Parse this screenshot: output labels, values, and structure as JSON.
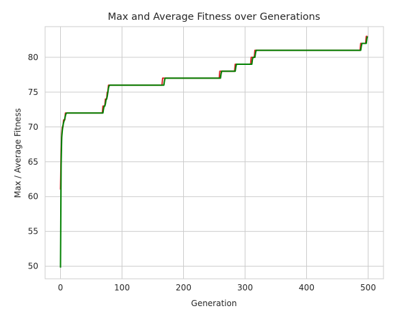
{
  "chart_data": {
    "type": "line",
    "title": "Max and Average Fitness over Generations",
    "xlabel": "Generation",
    "ylabel": "Max / Average Fitness",
    "xlim": [
      -25,
      525
    ],
    "ylim": [
      48.2,
      84.4
    ],
    "xticks": [
      0,
      100,
      200,
      300,
      400,
      500
    ],
    "yticks": [
      50,
      55,
      60,
      65,
      70,
      75,
      80
    ],
    "grid": true,
    "legend": "none",
    "series": [
      {
        "color": "#d62728",
        "x": [
          0,
          1,
          2,
          3,
          4,
          5,
          6,
          7,
          8,
          9,
          10,
          68,
          69,
          70,
          71,
          72,
          73,
          74,
          75,
          76,
          77,
          78,
          79,
          80,
          165,
          166,
          167,
          168,
          169,
          170,
          258,
          259,
          260,
          261,
          283,
          284,
          285,
          286,
          309,
          310,
          311,
          312,
          315,
          316,
          317,
          318,
          487,
          488,
          489,
          490,
          496,
          497,
          498,
          499
        ],
        "y": [
          61,
          66,
          69,
          70,
          70,
          71,
          71,
          71,
          72,
          72,
          72,
          72,
          73,
          73,
          73,
          73,
          74,
          74,
          74,
          75,
          75,
          76,
          76,
          76,
          76,
          77,
          77,
          77,
          77,
          77,
          77,
          78,
          78,
          78,
          78,
          79,
          79,
          79,
          79,
          80,
          80,
          80,
          80,
          81,
          81,
          81,
          81,
          82,
          82,
          82,
          82,
          83,
          83,
          83
        ]
      },
      {
        "color": "#008000",
        "x": [
          0,
          1,
          2,
          3,
          4,
          5,
          6,
          7,
          8,
          9,
          10,
          69,
          70,
          71,
          72,
          73,
          74,
          75,
          76,
          77,
          78,
          79,
          80,
          81,
          168,
          169,
          170,
          171,
          260,
          261,
          262,
          284,
          285,
          286,
          287,
          311,
          312,
          313,
          316,
          317,
          318,
          319,
          488,
          489,
          490,
          491,
          497,
          498,
          499
        ],
        "y": [
          49.8,
          64.5,
          68.5,
          69.5,
          70.2,
          70.6,
          70.9,
          71.2,
          71.6,
          71.9,
          72,
          72,
          72.6,
          73,
          73,
          73.3,
          73.9,
          74,
          74.4,
          75,
          75.6,
          75.9,
          76,
          76,
          76,
          76.6,
          77,
          77,
          77,
          77.6,
          78,
          78,
          78.6,
          79,
          79,
          79,
          79.7,
          80,
          80,
          80.6,
          81,
          81,
          81,
          81.6,
          82,
          82,
          82,
          82.7,
          83
        ]
      }
    ]
  }
}
